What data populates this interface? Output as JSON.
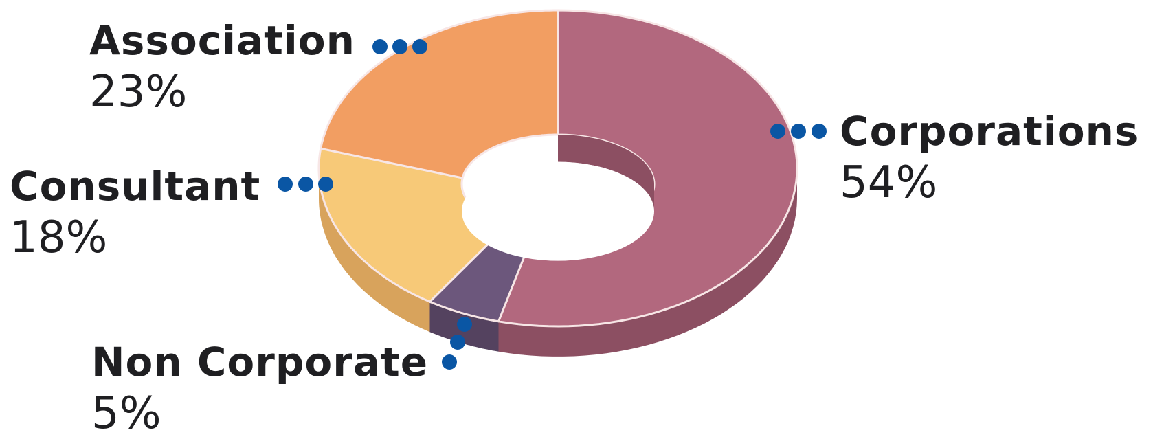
{
  "chart_data": {
    "type": "pie",
    "style": "3d-donut",
    "title": "",
    "labels": [
      "Corporations",
      "Non Corporate",
      "Consultant",
      "Association"
    ],
    "values": [
      54,
      5,
      18,
      23
    ],
    "value_labels": [
      "54%",
      "5%",
      "18%",
      "23%"
    ],
    "unit": "%",
    "colors": [
      "#b2687e",
      "#6c577c",
      "#f7c978",
      "#f29e62"
    ],
    "side_colors": [
      "#8c4f62",
      "#54425f",
      "#d8a35c",
      "#d87e4e"
    ],
    "leader_dot_color": "#0a56a4",
    "legend": "none",
    "grid": false
  }
}
